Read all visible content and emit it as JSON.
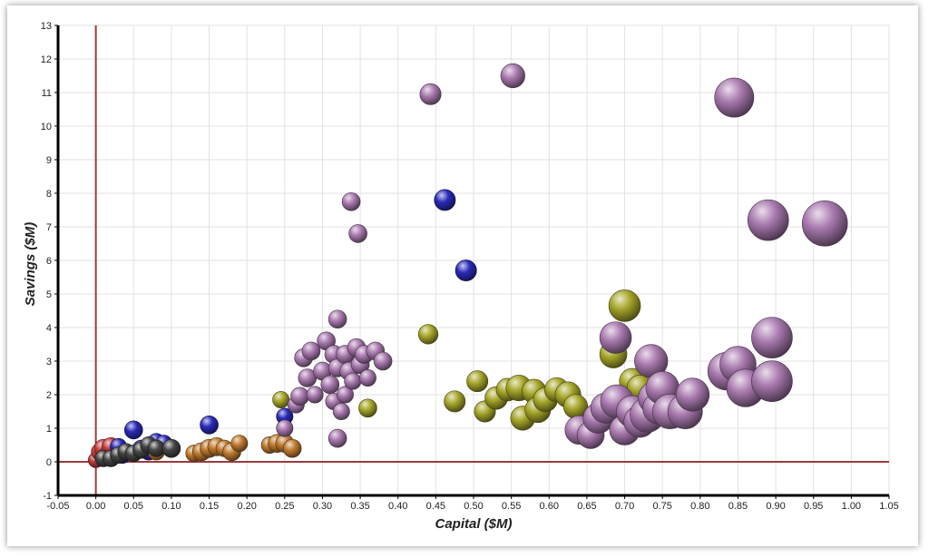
{
  "chart_data": {
    "type": "bubble",
    "title": "",
    "xlabel": "Capital ($M)",
    "ylabel": "Savings ($M)",
    "xlim": [
      -0.05,
      1.05
    ],
    "ylim": [
      -1,
      13
    ],
    "xticks": [
      "-0.05",
      "0.00",
      "0.05",
      "0.10",
      "0.15",
      "0.20",
      "0.25",
      "0.30",
      "0.35",
      "0.40",
      "0.45",
      "0.50",
      "0.55",
      "0.60",
      "0.65",
      "0.70",
      "0.75",
      "0.80",
      "0.85",
      "0.90",
      "0.95",
      "1.00",
      "1.05"
    ],
    "yticks": [
      "-1",
      "0",
      "1",
      "2",
      "3",
      "4",
      "5",
      "6",
      "7",
      "8",
      "9",
      "10",
      "11",
      "12",
      "13"
    ],
    "grid": true,
    "legend": "none",
    "reference_lines": {
      "x": 0,
      "y": 0,
      "color": "#9b3b3b"
    },
    "series": [
      {
        "color": "#c43a3a",
        "points": [
          [
            0.0,
            0.05,
            0.01
          ],
          [
            0.005,
            0.3,
            0.011
          ],
          [
            0.01,
            0.4,
            0.012
          ],
          [
            0.015,
            0.2,
            0.011
          ],
          [
            0.02,
            0.45,
            0.012
          ]
        ]
      },
      {
        "color": "#2a2ab8",
        "points": [
          [
            0.03,
            0.45,
            0.011
          ],
          [
            0.035,
            0.2,
            0.011
          ],
          [
            0.05,
            0.95,
            0.012
          ],
          [
            0.06,
            0.4,
            0.011
          ],
          [
            0.07,
            0.3,
            0.011
          ],
          [
            0.08,
            0.6,
            0.011
          ],
          [
            0.09,
            0.55,
            0.011
          ],
          [
            0.15,
            1.1,
            0.012
          ],
          [
            0.25,
            1.35,
            0.011
          ],
          [
            0.462,
            7.8,
            0.014
          ],
          [
            0.49,
            5.7,
            0.014
          ]
        ]
      },
      {
        "color": "#c07a30",
        "points": [
          [
            0.08,
            0.3,
            0.011
          ],
          [
            0.13,
            0.25,
            0.011
          ],
          [
            0.14,
            0.3,
            0.012
          ],
          [
            0.15,
            0.4,
            0.012
          ],
          [
            0.16,
            0.45,
            0.012
          ],
          [
            0.17,
            0.4,
            0.011
          ],
          [
            0.18,
            0.3,
            0.012
          ],
          [
            0.19,
            0.55,
            0.011
          ],
          [
            0.23,
            0.5,
            0.011
          ],
          [
            0.24,
            0.55,
            0.012
          ],
          [
            0.25,
            0.55,
            0.012
          ],
          [
            0.26,
            0.4,
            0.012
          ]
        ]
      },
      {
        "color": "#444444",
        "points": [
          [
            0.01,
            0.1,
            0.011
          ],
          [
            0.02,
            0.1,
            0.011
          ],
          [
            0.03,
            0.2,
            0.011
          ],
          [
            0.04,
            0.3,
            0.011
          ],
          [
            0.05,
            0.25,
            0.011
          ],
          [
            0.06,
            0.35,
            0.011
          ],
          [
            0.07,
            0.5,
            0.011
          ],
          [
            0.08,
            0.4,
            0.011
          ],
          [
            0.1,
            0.4,
            0.012
          ]
        ]
      },
      {
        "color": "#a6a62a",
        "points": [
          [
            0.245,
            1.85,
            0.011
          ],
          [
            0.36,
            1.6,
            0.012
          ],
          [
            0.44,
            3.8,
            0.013
          ],
          [
            0.475,
            1.8,
            0.014
          ],
          [
            0.505,
            2.4,
            0.014
          ],
          [
            0.515,
            1.5,
            0.014
          ],
          [
            0.53,
            1.9,
            0.015
          ],
          [
            0.545,
            2.15,
            0.015
          ],
          [
            0.56,
            2.2,
            0.017
          ],
          [
            0.565,
            1.3,
            0.016
          ],
          [
            0.58,
            2.1,
            0.016
          ],
          [
            0.585,
            1.55,
            0.017
          ],
          [
            0.595,
            1.85,
            0.016
          ],
          [
            0.61,
            2.15,
            0.016
          ],
          [
            0.625,
            2.0,
            0.017
          ],
          [
            0.635,
            1.65,
            0.016
          ],
          [
            0.685,
            3.2,
            0.018
          ],
          [
            0.7,
            4.65,
            0.021
          ],
          [
            0.71,
            2.4,
            0.017
          ],
          [
            0.72,
            2.2,
            0.017
          ]
        ]
      },
      {
        "color": "#a97aaf",
        "points": [
          [
            0.25,
            1.0,
            0.011
          ],
          [
            0.265,
            1.7,
            0.011
          ],
          [
            0.27,
            1.95,
            0.012
          ],
          [
            0.275,
            3.1,
            0.012
          ],
          [
            0.28,
            2.5,
            0.012
          ],
          [
            0.285,
            3.3,
            0.012
          ],
          [
            0.29,
            2.0,
            0.011
          ],
          [
            0.3,
            2.7,
            0.012
          ],
          [
            0.305,
            3.6,
            0.012
          ],
          [
            0.31,
            2.3,
            0.012
          ],
          [
            0.315,
            1.8,
            0.011
          ],
          [
            0.315,
            3.2,
            0.012
          ],
          [
            0.32,
            4.25,
            0.012
          ],
          [
            0.32,
            2.8,
            0.012
          ],
          [
            0.325,
            1.5,
            0.011
          ],
          [
            0.33,
            3.2,
            0.012
          ],
          [
            0.33,
            2.0,
            0.011
          ],
          [
            0.335,
            2.7,
            0.012
          ],
          [
            0.34,
            2.4,
            0.011
          ],
          [
            0.345,
            3.4,
            0.012
          ],
          [
            0.35,
            2.9,
            0.012
          ],
          [
            0.355,
            3.2,
            0.012
          ],
          [
            0.36,
            2.5,
            0.011
          ],
          [
            0.37,
            3.3,
            0.012
          ],
          [
            0.38,
            3.0,
            0.012
          ],
          [
            0.32,
            0.7,
            0.012
          ],
          [
            0.338,
            7.75,
            0.012
          ],
          [
            0.347,
            6.8,
            0.012
          ],
          [
            0.443,
            10.95,
            0.014
          ],
          [
            0.552,
            11.5,
            0.016
          ],
          [
            0.64,
            0.95,
            0.019
          ],
          [
            0.655,
            0.8,
            0.018
          ],
          [
            0.665,
            1.3,
            0.02
          ],
          [
            0.675,
            1.6,
            0.02
          ],
          [
            0.688,
            3.7,
            0.021
          ],
          [
            0.69,
            1.8,
            0.022
          ],
          [
            0.7,
            0.95,
            0.02
          ],
          [
            0.71,
            1.5,
            0.021
          ],
          [
            0.72,
            1.2,
            0.021
          ],
          [
            0.73,
            1.4,
            0.023
          ],
          [
            0.735,
            3.0,
            0.022
          ],
          [
            0.74,
            1.9,
            0.022
          ],
          [
            0.745,
            1.6,
            0.021
          ],
          [
            0.75,
            2.2,
            0.022
          ],
          [
            0.76,
            1.5,
            0.023
          ],
          [
            0.78,
            1.5,
            0.023
          ],
          [
            0.79,
            2.0,
            0.022
          ],
          [
            0.835,
            2.7,
            0.025
          ],
          [
            0.845,
            10.85,
            0.026
          ],
          [
            0.85,
            2.9,
            0.024
          ],
          [
            0.86,
            2.2,
            0.025
          ],
          [
            0.89,
            7.2,
            0.027
          ],
          [
            0.895,
            3.7,
            0.027
          ],
          [
            0.895,
            2.4,
            0.027
          ],
          [
            0.965,
            7.1,
            0.03
          ]
        ]
      }
    ]
  }
}
